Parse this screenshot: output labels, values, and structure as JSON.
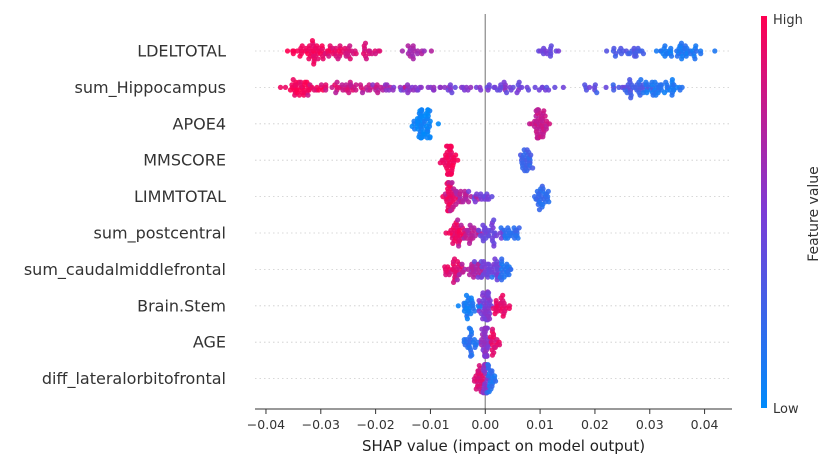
{
  "chart_data": {
    "type": "scatter",
    "subtype": "shap-beeswarm",
    "xlabel": "SHAP value (impact on model output)",
    "xlim": [
      -0.042,
      0.045
    ],
    "xticks": [
      -0.04,
      -0.03,
      -0.02,
      -0.01,
      0.0,
      0.01,
      0.02,
      0.03,
      0.04
    ],
    "xtick_labels": [
      "−0.04",
      "−0.03",
      "−0.02",
      "−0.01",
      "0.00",
      "0.01",
      "0.02",
      "0.03",
      "0.04"
    ],
    "features": [
      {
        "name": "LDELTOTAL",
        "clusters": [
          {
            "c": -0.0305,
            "s": 0.0028,
            "n": 55,
            "f": 0.95
          },
          {
            "c": -0.0245,
            "s": 0.0035,
            "n": 40,
            "f": 0.85
          },
          {
            "c": -0.013,
            "s": 0.0012,
            "n": 18,
            "f": 0.65
          },
          {
            "c": 0.011,
            "s": 0.001,
            "n": 14,
            "f": 0.45
          },
          {
            "c": 0.0265,
            "s": 0.0018,
            "n": 24,
            "f": 0.3
          },
          {
            "c": 0.0355,
            "s": 0.0025,
            "n": 48,
            "f": 0.12
          }
        ]
      },
      {
        "name": "sum_Hippocampus",
        "clusters": [
          {
            "c": -0.033,
            "s": 0.002,
            "n": 45,
            "f": 0.95
          },
          {
            "c": -0.026,
            "s": 0.003,
            "n": 28,
            "f": 0.85
          },
          {
            "c": -0.02,
            "s": 0.003,
            "n": 22,
            "f": 0.75
          },
          {
            "c": -0.008,
            "s": 0.007,
            "n": 45,
            "f": 0.55
          },
          {
            "c": 0.005,
            "s": 0.006,
            "n": 35,
            "f": 0.45
          },
          {
            "c": 0.02,
            "s": 0.004,
            "n": 18,
            "f": 0.4
          },
          {
            "c": 0.027,
            "s": 0.002,
            "n": 30,
            "f": 0.28
          },
          {
            "c": 0.032,
            "s": 0.002,
            "n": 45,
            "f": 0.12
          }
        ]
      },
      {
        "name": "APOE4",
        "clusters": [
          {
            "c": -0.0115,
            "s": 0.0009,
            "n": 60,
            "f": 0.05
          },
          {
            "c": 0.0098,
            "s": 0.0009,
            "n": 50,
            "f": 0.78
          }
        ]
      },
      {
        "name": "MMSCORE",
        "clusters": [
          {
            "c": -0.0065,
            "s": 0.0006,
            "n": 45,
            "f": 0.95
          },
          {
            "c": 0.0075,
            "s": 0.0006,
            "n": 30,
            "f": 0.25
          }
        ]
      },
      {
        "name": "LIMMTOTAL",
        "clusters": [
          {
            "c": -0.0065,
            "s": 0.0006,
            "n": 35,
            "f": 0.92
          },
          {
            "c": -0.0045,
            "s": 0.0012,
            "n": 28,
            "f": 0.72
          },
          {
            "c": -0.001,
            "s": 0.0012,
            "n": 16,
            "f": 0.45
          },
          {
            "c": 0.01,
            "s": 0.0008,
            "n": 30,
            "f": 0.2
          }
        ]
      },
      {
        "name": "sum_postcentral",
        "clusters": [
          {
            "c": -0.0055,
            "s": 0.0008,
            "n": 32,
            "f": 0.92
          },
          {
            "c": -0.0025,
            "s": 0.0014,
            "n": 26,
            "f": 0.72
          },
          {
            "c": 0.001,
            "s": 0.0014,
            "n": 34,
            "f": 0.45
          },
          {
            "c": 0.005,
            "s": 0.001,
            "n": 22,
            "f": 0.18
          }
        ]
      },
      {
        "name": "sum_caudalmiddlefrontal",
        "clusters": [
          {
            "c": -0.006,
            "s": 0.001,
            "n": 30,
            "f": 0.88
          },
          {
            "c": -0.0025,
            "s": 0.0014,
            "n": 28,
            "f": 0.7
          },
          {
            "c": 0.001,
            "s": 0.0012,
            "n": 40,
            "f": 0.45
          },
          {
            "c": 0.0035,
            "s": 0.0008,
            "n": 22,
            "f": 0.15
          }
        ]
      },
      {
        "name": "Brain.Stem",
        "clusters": [
          {
            "c": -0.003,
            "s": 0.001,
            "n": 30,
            "f": 0.1
          },
          {
            "c": 0.0,
            "s": 0.0006,
            "n": 40,
            "f": 0.5
          },
          {
            "c": 0.003,
            "s": 0.0008,
            "n": 26,
            "f": 0.9
          }
        ]
      },
      {
        "name": "AGE",
        "clusters": [
          {
            "c": -0.0025,
            "s": 0.0006,
            "n": 26,
            "f": 0.15
          },
          {
            "c": 0.0,
            "s": 0.0004,
            "n": 40,
            "f": 0.55
          },
          {
            "c": 0.0015,
            "s": 0.0006,
            "n": 18,
            "f": 0.9
          }
        ]
      },
      {
        "name": "diff_lateralorbitofrontal",
        "clusters": [
          {
            "c": -0.001,
            "s": 0.0004,
            "n": 26,
            "f": 0.85
          },
          {
            "c": 0.0,
            "s": 0.0003,
            "n": 30,
            "f": 0.55
          },
          {
            "c": 0.001,
            "s": 0.0004,
            "n": 22,
            "f": 0.15
          }
        ]
      }
    ],
    "colorbar": {
      "title": "Feature value",
      "high_label": "High",
      "low_label": "Low",
      "low_color": "#008bfb",
      "high_color": "#ff0051"
    },
    "zero_line_color": "#999999",
    "row_line_color": "#cccccc"
  }
}
